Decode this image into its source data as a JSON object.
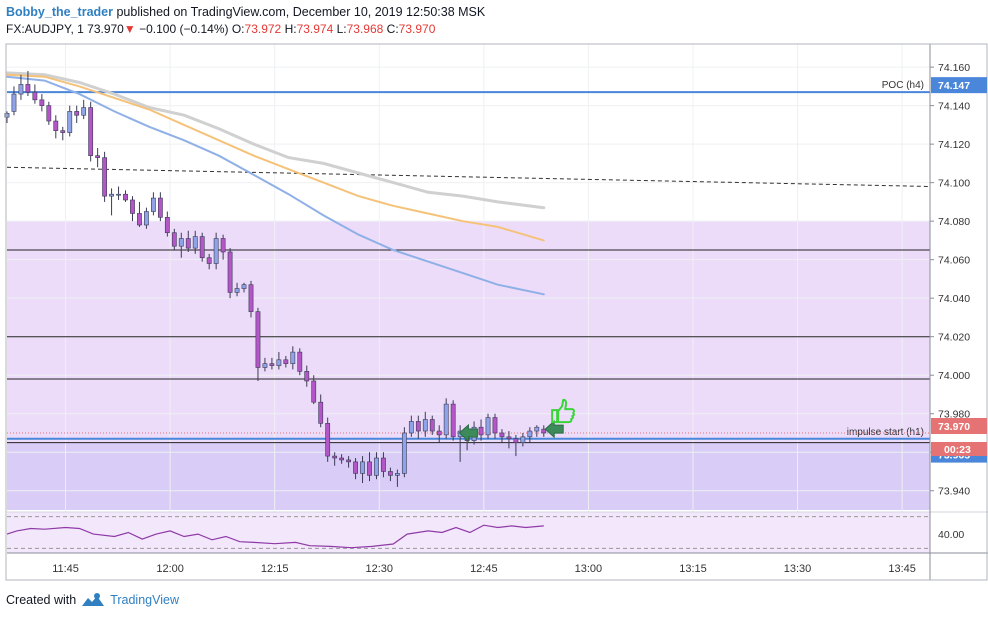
{
  "header": {
    "author": "Bobby_the_trader",
    "published_text": "published on TradingView.com, December 10, 2019 12:50:38 MSK",
    "symbol": "FX:AUDJPY, 1",
    "last": "73.970",
    "change": "−0.100 (−0.14%)",
    "o_label": "O:",
    "o_val": "73.972",
    "h_label": "H:",
    "h_val": "73.974",
    "l_label": "L:",
    "l_val": "73.968",
    "c_label": "C:",
    "c_val": "73.970"
  },
  "footer": {
    "created_with": "Created with",
    "brand": "TradingView"
  },
  "colors": {
    "up_candle": "#8fa3e8",
    "down_candle": "#b455c8",
    "ma_gray": "#d0d0d0",
    "ma_orange": "#f5c27a",
    "ma_blue": "#8fb0e6",
    "zone_light": "#ecdcfa",
    "zone_dark": "#d9ccf6",
    "level_blue": "#4a86d9",
    "price_red": "#e57373",
    "arrow_green": "#3d8b5a",
    "thumb_green": "#39d439",
    "brand_blue": "#2f7fc1"
  },
  "chart_data": {
    "type": "candlestick",
    "symbol": "FX:AUDJPY",
    "timeframe": "1",
    "y_ticks": [
      74.16,
      74.14,
      74.12,
      74.1,
      74.08,
      74.06,
      74.04,
      74.02,
      74.0,
      73.98,
      73.96,
      73.94
    ],
    "ylim": [
      73.93,
      74.172
    ],
    "x_ticks": [
      "11:45",
      "12:00",
      "12:15",
      "12:30",
      "12:45",
      "13:00",
      "13:15",
      "13:30",
      "13:45"
    ],
    "x_tick_minutes": [
      45,
      60,
      75,
      90,
      105,
      120,
      135,
      150,
      165
    ],
    "xlim_minutes": [
      36.6,
      169
    ],
    "candles": [
      {
        "t": 36.6,
        "o": 74.134,
        "h": 74.137,
        "l": 74.131,
        "c": 74.136
      },
      {
        "t": 37.6,
        "o": 74.137,
        "h": 74.15,
        "l": 74.135,
        "c": 74.146
      },
      {
        "t": 38.6,
        "o": 74.146,
        "h": 74.156,
        "l": 74.143,
        "c": 74.151
      },
      {
        "t": 39.6,
        "o": 74.151,
        "h": 74.158,
        "l": 74.145,
        "c": 74.147
      },
      {
        "t": 40.6,
        "o": 74.147,
        "h": 74.151,
        "l": 74.141,
        "c": 74.143
      },
      {
        "t": 41.6,
        "o": 74.143,
        "h": 74.146,
        "l": 74.137,
        "c": 74.14
      },
      {
        "t": 42.6,
        "o": 74.14,
        "h": 74.142,
        "l": 74.13,
        "c": 74.132
      },
      {
        "t": 43.6,
        "o": 74.132,
        "h": 74.135,
        "l": 74.123,
        "c": 74.127
      },
      {
        "t": 44.6,
        "o": 74.127,
        "h": 74.129,
        "l": 74.122,
        "c": 74.126
      },
      {
        "t": 45.6,
        "o": 74.126,
        "h": 74.14,
        "l": 74.124,
        "c": 74.137
      },
      {
        "t": 46.6,
        "o": 74.137,
        "h": 74.14,
        "l": 74.131,
        "c": 74.135
      },
      {
        "t": 47.6,
        "o": 74.135,
        "h": 74.143,
        "l": 74.133,
        "c": 74.139
      },
      {
        "t": 48.6,
        "o": 74.139,
        "h": 74.142,
        "l": 74.111,
        "c": 74.114
      },
      {
        "t": 49.6,
        "o": 74.114,
        "h": 74.118,
        "l": 74.108,
        "c": 74.113
      },
      {
        "t": 50.6,
        "o": 74.113,
        "h": 74.116,
        "l": 74.09,
        "c": 74.093
      },
      {
        "t": 51.6,
        "o": 74.093,
        "h": 74.097,
        "l": 74.083,
        "c": 74.094
      },
      {
        "t": 52.6,
        "o": 74.094,
        "h": 74.098,
        "l": 74.091,
        "c": 74.094
      },
      {
        "t": 53.6,
        "o": 74.094,
        "h": 74.096,
        "l": 74.09,
        "c": 74.091
      },
      {
        "t": 54.6,
        "o": 74.091,
        "h": 74.093,
        "l": 74.08,
        "c": 74.084
      },
      {
        "t": 55.6,
        "o": 74.084,
        "h": 74.09,
        "l": 74.077,
        "c": 74.078
      },
      {
        "t": 56.6,
        "o": 74.078,
        "h": 74.087,
        "l": 74.076,
        "c": 74.085
      },
      {
        "t": 57.6,
        "o": 74.085,
        "h": 74.095,
        "l": 74.083,
        "c": 74.092
      },
      {
        "t": 58.6,
        "o": 74.092,
        "h": 74.095,
        "l": 74.08,
        "c": 74.082
      },
      {
        "t": 59.6,
        "o": 74.082,
        "h": 74.085,
        "l": 74.072,
        "c": 74.074
      },
      {
        "t": 60.6,
        "o": 74.074,
        "h": 74.076,
        "l": 74.065,
        "c": 74.067
      },
      {
        "t": 61.6,
        "o": 74.067,
        "h": 74.074,
        "l": 74.061,
        "c": 74.071
      },
      {
        "t": 62.6,
        "o": 74.071,
        "h": 74.075,
        "l": 74.064,
        "c": 74.066
      },
      {
        "t": 63.6,
        "o": 74.066,
        "h": 74.075,
        "l": 74.063,
        "c": 74.072
      },
      {
        "t": 64.6,
        "o": 74.072,
        "h": 74.074,
        "l": 74.059,
        "c": 74.061
      },
      {
        "t": 65.6,
        "o": 74.061,
        "h": 74.063,
        "l": 74.055,
        "c": 74.058
      },
      {
        "t": 66.6,
        "o": 74.058,
        "h": 74.074,
        "l": 74.055,
        "c": 74.071
      },
      {
        "t": 67.6,
        "o": 74.071,
        "h": 74.073,
        "l": 74.06,
        "c": 74.064
      },
      {
        "t": 68.6,
        "o": 74.064,
        "h": 74.066,
        "l": 74.04,
        "c": 74.043
      },
      {
        "t": 69.6,
        "o": 74.043,
        "h": 74.048,
        "l": 74.041,
        "c": 74.045
      },
      {
        "t": 70.6,
        "o": 74.045,
        "h": 74.048,
        "l": 74.043,
        "c": 74.047
      },
      {
        "t": 71.6,
        "o": 74.047,
        "h": 74.049,
        "l": 74.03,
        "c": 74.033
      },
      {
        "t": 72.6,
        "o": 74.033,
        "h": 74.035,
        "l": 73.997,
        "c": 74.004
      },
      {
        "t": 73.6,
        "o": 74.004,
        "h": 74.009,
        "l": 74.002,
        "c": 74.006
      },
      {
        "t": 74.6,
        "o": 74.006,
        "h": 74.009,
        "l": 74.003,
        "c": 74.005
      },
      {
        "t": 75.6,
        "o": 74.005,
        "h": 74.012,
        "l": 74.003,
        "c": 74.008
      },
      {
        "t": 76.6,
        "o": 74.008,
        "h": 74.01,
        "l": 74.004,
        "c": 74.006
      },
      {
        "t": 77.6,
        "o": 74.006,
        "h": 74.015,
        "l": 74.003,
        "c": 74.012
      },
      {
        "t": 78.6,
        "o": 74.012,
        "h": 74.014,
        "l": 74.0,
        "c": 74.002
      },
      {
        "t": 79.6,
        "o": 74.002,
        "h": 74.005,
        "l": 73.994,
        "c": 73.997
      },
      {
        "t": 80.6,
        "o": 73.997,
        "h": 74.0,
        "l": 73.985,
        "c": 73.986
      },
      {
        "t": 81.6,
        "o": 73.986,
        "h": 73.99,
        "l": 73.973,
        "c": 73.975
      },
      {
        "t": 82.6,
        "o": 73.975,
        "h": 73.978,
        "l": 73.955,
        "c": 73.958
      },
      {
        "t": 83.6,
        "o": 73.958,
        "h": 73.96,
        "l": 73.953,
        "c": 73.957
      },
      {
        "t": 84.6,
        "o": 73.957,
        "h": 73.959,
        "l": 73.954,
        "c": 73.956
      },
      {
        "t": 85.6,
        "o": 73.956,
        "h": 73.958,
        "l": 73.952,
        "c": 73.955
      },
      {
        "t": 86.6,
        "o": 73.955,
        "h": 73.957,
        "l": 73.946,
        "c": 73.949
      },
      {
        "t": 87.6,
        "o": 73.949,
        "h": 73.958,
        "l": 73.944,
        "c": 73.955
      },
      {
        "t": 88.6,
        "o": 73.955,
        "h": 73.96,
        "l": 73.945,
        "c": 73.948
      },
      {
        "t": 89.6,
        "o": 73.948,
        "h": 73.96,
        "l": 73.946,
        "c": 73.957
      },
      {
        "t": 90.6,
        "o": 73.957,
        "h": 73.96,
        "l": 73.947,
        "c": 73.95
      },
      {
        "t": 91.6,
        "o": 73.95,
        "h": 73.952,
        "l": 73.945,
        "c": 73.948
      },
      {
        "t": 92.6,
        "o": 73.948,
        "h": 73.951,
        "l": 73.942,
        "c": 73.949
      },
      {
        "t": 93.6,
        "o": 73.949,
        "h": 73.973,
        "l": 73.947,
        "c": 73.97
      },
      {
        "t": 94.6,
        "o": 73.97,
        "h": 73.979,
        "l": 73.968,
        "c": 73.976
      },
      {
        "t": 95.6,
        "o": 73.976,
        "h": 73.979,
        "l": 73.967,
        "c": 73.971
      },
      {
        "t": 96.6,
        "o": 73.971,
        "h": 73.981,
        "l": 73.968,
        "c": 73.977
      },
      {
        "t": 97.6,
        "o": 73.977,
        "h": 73.979,
        "l": 73.969,
        "c": 73.971
      },
      {
        "t": 98.6,
        "o": 73.971,
        "h": 73.974,
        "l": 73.965,
        "c": 73.969
      },
      {
        "t": 99.6,
        "o": 73.969,
        "h": 73.988,
        "l": 73.967,
        "c": 73.985
      },
      {
        "t": 100.6,
        "o": 73.985,
        "h": 73.987,
        "l": 73.966,
        "c": 73.968
      },
      {
        "t": 101.6,
        "o": 73.968,
        "h": 73.974,
        "l": 73.955,
        "c": 73.971
      },
      {
        "t": 102.6,
        "o": 73.971,
        "h": 73.973,
        "l": 73.961,
        "c": 73.966
      },
      {
        "t": 103.6,
        "o": 73.966,
        "h": 73.976,
        "l": 73.964,
        "c": 73.973
      },
      {
        "t": 104.6,
        "o": 73.973,
        "h": 73.977,
        "l": 73.966,
        "c": 73.969
      },
      {
        "t": 105.6,
        "o": 73.969,
        "h": 73.98,
        "l": 73.967,
        "c": 73.978
      },
      {
        "t": 106.6,
        "o": 73.978,
        "h": 73.98,
        "l": 73.967,
        "c": 73.97
      },
      {
        "t": 107.6,
        "o": 73.97,
        "h": 73.972,
        "l": 73.965,
        "c": 73.968
      },
      {
        "t": 108.6,
        "o": 73.968,
        "h": 73.971,
        "l": 73.962,
        "c": 73.967
      },
      {
        "t": 109.6,
        "o": 73.967,
        "h": 73.969,
        "l": 73.958,
        "c": 73.965
      },
      {
        "t": 110.6,
        "o": 73.965,
        "h": 73.97,
        "l": 73.963,
        "c": 73.968
      },
      {
        "t": 111.6,
        "o": 73.968,
        "h": 73.973,
        "l": 73.965,
        "c": 73.971
      },
      {
        "t": 112.6,
        "o": 73.971,
        "h": 73.974,
        "l": 73.968,
        "c": 73.973
      },
      {
        "t": 113.6,
        "o": 73.972,
        "h": 73.974,
        "l": 73.968,
        "c": 73.97
      }
    ],
    "moving_averages": [
      {
        "color": "gray",
        "points": [
          [
            36.6,
            74.157
          ],
          [
            42,
            74.156
          ],
          [
            47,
            74.152
          ],
          [
            52,
            74.146
          ],
          [
            57,
            74.139
          ],
          [
            62,
            74.135
          ],
          [
            67,
            74.128
          ],
          [
            72,
            74.12
          ],
          [
            77,
            74.113
          ],
          [
            82,
            74.11
          ],
          [
            87,
            74.105
          ],
          [
            92,
            74.1
          ],
          [
            97,
            74.095
          ],
          [
            102,
            74.093
          ],
          [
            107,
            74.09
          ],
          [
            113.6,
            74.087
          ]
        ]
      },
      {
        "color": "orange",
        "points": [
          [
            36.6,
            74.156
          ],
          [
            42,
            74.155
          ],
          [
            47,
            74.15
          ],
          [
            52,
            74.144
          ],
          [
            57,
            74.138
          ],
          [
            62,
            74.13
          ],
          [
            67,
            74.122
          ],
          [
            72,
            74.114
          ],
          [
            77,
            74.107
          ],
          [
            82,
            74.1
          ],
          [
            87,
            74.093
          ],
          [
            92,
            74.088
          ],
          [
            97,
            74.084
          ],
          [
            102,
            74.08
          ],
          [
            107,
            74.077
          ],
          [
            113.6,
            74.07
          ]
        ]
      },
      {
        "color": "blue",
        "points": [
          [
            36.6,
            74.155
          ],
          [
            42,
            74.153
          ],
          [
            47,
            74.146
          ],
          [
            52,
            74.137
          ],
          [
            57,
            74.129
          ],
          [
            62,
            74.122
          ],
          [
            67,
            74.114
          ],
          [
            72,
            74.104
          ],
          [
            77,
            74.094
          ],
          [
            82,
            74.083
          ],
          [
            87,
            74.073
          ],
          [
            92,
            74.065
          ],
          [
            97,
            74.059
          ],
          [
            102,
            74.053
          ],
          [
            107,
            74.047
          ],
          [
            113.6,
            74.042
          ]
        ]
      }
    ],
    "zones": [
      {
        "from": 74.08,
        "to": 73.965,
        "color": "light"
      },
      {
        "from": 73.965,
        "to": 73.927,
        "color": "dark"
      }
    ],
    "horizontal_lines": [
      {
        "price": 74.065,
        "style": "solid-black"
      },
      {
        "price": 74.02,
        "style": "solid-black"
      },
      {
        "price": 73.998,
        "style": "solid-black"
      },
      {
        "price": 73.965,
        "style": "solid-black"
      },
      {
        "price": 73.928,
        "style": "solid-black"
      },
      {
        "price": 74.147,
        "style": "solid-blue",
        "label": "POC (h4)"
      },
      {
        "price": 73.967,
        "style": "solid-blue",
        "label": "impulse start (h1)"
      },
      {
        "price": 73.97,
        "style": "dotted-red"
      }
    ],
    "trend_line": {
      "from": [
        36.6,
        74.108
      ],
      "to": [
        169,
        74.098
      ]
    },
    "price_labels": [
      {
        "price": 74.147,
        "text": "74.147",
        "bg": "blue"
      },
      {
        "price": 73.97,
        "text": "73.970",
        "bg": "red"
      },
      {
        "price": 73.965,
        "text": "73.965",
        "bg": "blue"
      }
    ],
    "countdown_label": "00:23",
    "osc_ticks": [
      "40.00"
    ],
    "osc_line": [
      [
        36.6,
        0.55
      ],
      [
        38,
        0.45
      ],
      [
        40,
        0.38
      ],
      [
        42,
        0.4
      ],
      [
        45,
        0.35
      ],
      [
        47,
        0.38
      ],
      [
        49,
        0.55
      ],
      [
        52,
        0.62
      ],
      [
        54,
        0.5
      ],
      [
        56,
        0.7
      ],
      [
        58,
        0.55
      ],
      [
        60,
        0.45
      ],
      [
        62,
        0.62
      ],
      [
        64,
        0.55
      ],
      [
        66,
        0.72
      ],
      [
        68,
        0.62
      ],
      [
        70,
        0.78
      ],
      [
        72,
        0.8
      ],
      [
        75,
        0.84
      ],
      [
        78,
        0.8
      ],
      [
        80,
        0.9
      ],
      [
        83,
        0.92
      ],
      [
        86,
        0.96
      ],
      [
        89,
        0.92
      ],
      [
        92,
        0.85
      ],
      [
        94,
        0.55
      ],
      [
        97,
        0.45
      ],
      [
        99,
        0.5
      ],
      [
        101,
        0.35
      ],
      [
        103,
        0.5
      ],
      [
        105,
        0.28
      ],
      [
        107,
        0.35
      ],
      [
        109,
        0.3
      ],
      [
        111,
        0.35
      ],
      [
        113.6,
        0.3
      ]
    ]
  }
}
